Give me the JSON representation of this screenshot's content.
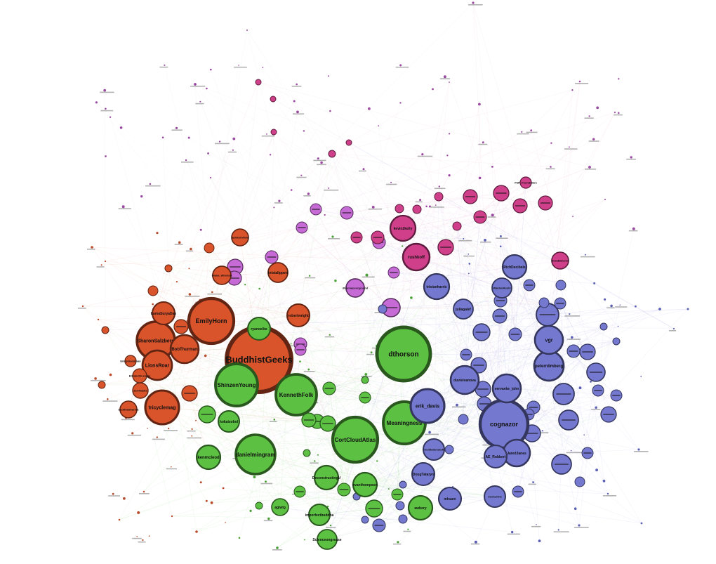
{
  "graph": {
    "colors": {
      "red": "#d9532b",
      "green": "#5cc142",
      "blue": "#7479cf",
      "magenta": "#cf3f8a",
      "violet": "#c66ad6",
      "edge_red": "#e8907a",
      "edge_green": "#7fcf70",
      "edge_blue": "#8f92dc",
      "edge_pink": "#e29ac6",
      "edge_grey": "#c8c8c8"
    },
    "labels": {
      "BuddhistGeeks": "BuddhistGeeks",
      "EmilyHorn": "EmilyHorn",
      "SharonSalzberg": "SharonSalzberg",
      "BobThurman": "BobThurman",
      "LionsRoar": "LionsRoar",
      "LamaSuryaDas": "LamaSuryaDas",
      "tricyclemag": "tricyclemag",
      "buddhadharma": "buddhadharma",
      "ZenHabits": "ZenHabits",
      "ElizabethLesser": "ElizabethLesser",
      "jackkornfield": "jackkornfield",
      "kristalippett": "kristalippett",
      "robertwright": "robertwright",
      "DianaWinston": "Diana_Winston",
      "EmilyGoodman": "EmilyGoodman",
      "ryanoelke": "ryanoelke",
      "ShinzenYoung": "ShinzenYoung",
      "KennethFolk": "KennethFolk",
      "danielmingram": "danielmingram",
      "kenmcleod": "kenmcleod",
      "hokaisobol": "hokaisobol",
      "dthorson": "dthorson",
      "Meaningness": "Meaningness",
      "CortCloudAtlas": "CortCloudAtlas",
      "evanthompson": "evanthompson",
      "DeconstructingU": "DeconstructingU",
      "awbery": "awbery",
      "agiwig": "agiwig",
      "imperfectbuddha": "imperfectbuddha",
      "ScienceOfMind": "Scienceongrease",
      "erikdavis": "erik_davis",
      "cognazor": "cognazor",
      "vgr": "vgr",
      "peternlimberg": "peternlimberg",
      "vervaeke": "vervaeke_john",
      "duvielvanova": "duvielvanova",
      "jaredJanes": "JaredJanes",
      "AERobbert": "AE_Robbert",
      "DougTataryn": "DougTataryn",
      "tristanharris": "tristanharris",
      "RichDecibels": "RichDecibels",
      "WaldenRoshi": "WaldenRoshi",
      "juliagalef": "juliagalef",
      "meditationstuff": "meditationstuff",
      "rushkoff": "rushkoff",
      "kevin2kelly": "kevin2kelly",
      "NoraBateson": "NoraBateson",
      "P2PFoundation": "P2P_Foundation",
      "mlsaen": "mlsaen",
      "mcmurtrie": "mcmurtrie",
      "dharmaoverground": "dharmaoverground"
    }
  }
}
